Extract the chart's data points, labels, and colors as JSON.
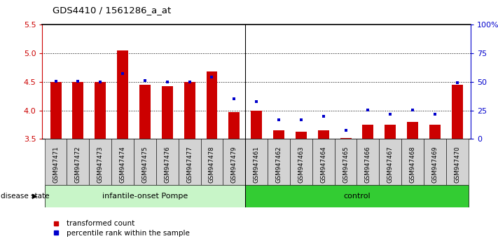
{
  "title": "GDS4410 / 1561286_a_at",
  "samples": [
    "GSM947471",
    "GSM947472",
    "GSM947473",
    "GSM947474",
    "GSM947475",
    "GSM947476",
    "GSM947477",
    "GSM947478",
    "GSM947479",
    "GSM947461",
    "GSM947462",
    "GSM947463",
    "GSM947464",
    "GSM947465",
    "GSM947466",
    "GSM947467",
    "GSM947468",
    "GSM947469",
    "GSM947470"
  ],
  "red_values": [
    4.5,
    4.5,
    4.5,
    5.05,
    4.45,
    4.43,
    4.5,
    4.68,
    3.97,
    4.0,
    3.65,
    3.63,
    3.65,
    3.52,
    3.75,
    3.75,
    3.8,
    3.75,
    4.45
  ],
  "blue_values": [
    4.51,
    4.51,
    4.5,
    4.64,
    4.52,
    4.5,
    4.5,
    4.58,
    4.2,
    4.15,
    3.84,
    3.84,
    3.9,
    3.65,
    4.01,
    3.93,
    4.01,
    3.93,
    4.48
  ],
  "group1_label": "infantile-onset Pompe",
  "group2_label": "control",
  "group1_count": 9,
  "group2_count": 10,
  "ylim": [
    3.5,
    5.5
  ],
  "yticks_left": [
    3.5,
    4.0,
    4.5,
    5.0,
    5.5
  ],
  "yticks_right": [
    0,
    25,
    50,
    75,
    100
  ],
  "right_ylabels": [
    "0",
    "25",
    "50",
    "75",
    "100%"
  ],
  "bar_color": "#cc0000",
  "dot_color": "#0000cc",
  "group1_bg": "#c8f5c8",
  "group2_bg": "#33cc33",
  "tick_bg": "#d3d3d3",
  "left_axis_color": "#cc0000",
  "right_axis_color": "#0000cc",
  "legend_items": [
    "transformed count",
    "percentile rank within the sample"
  ],
  "disease_state_label": "disease state",
  "base_value": 3.5,
  "grid_lines": [
    4.0,
    4.5,
    5.0
  ],
  "fig_bg": "#ffffff"
}
